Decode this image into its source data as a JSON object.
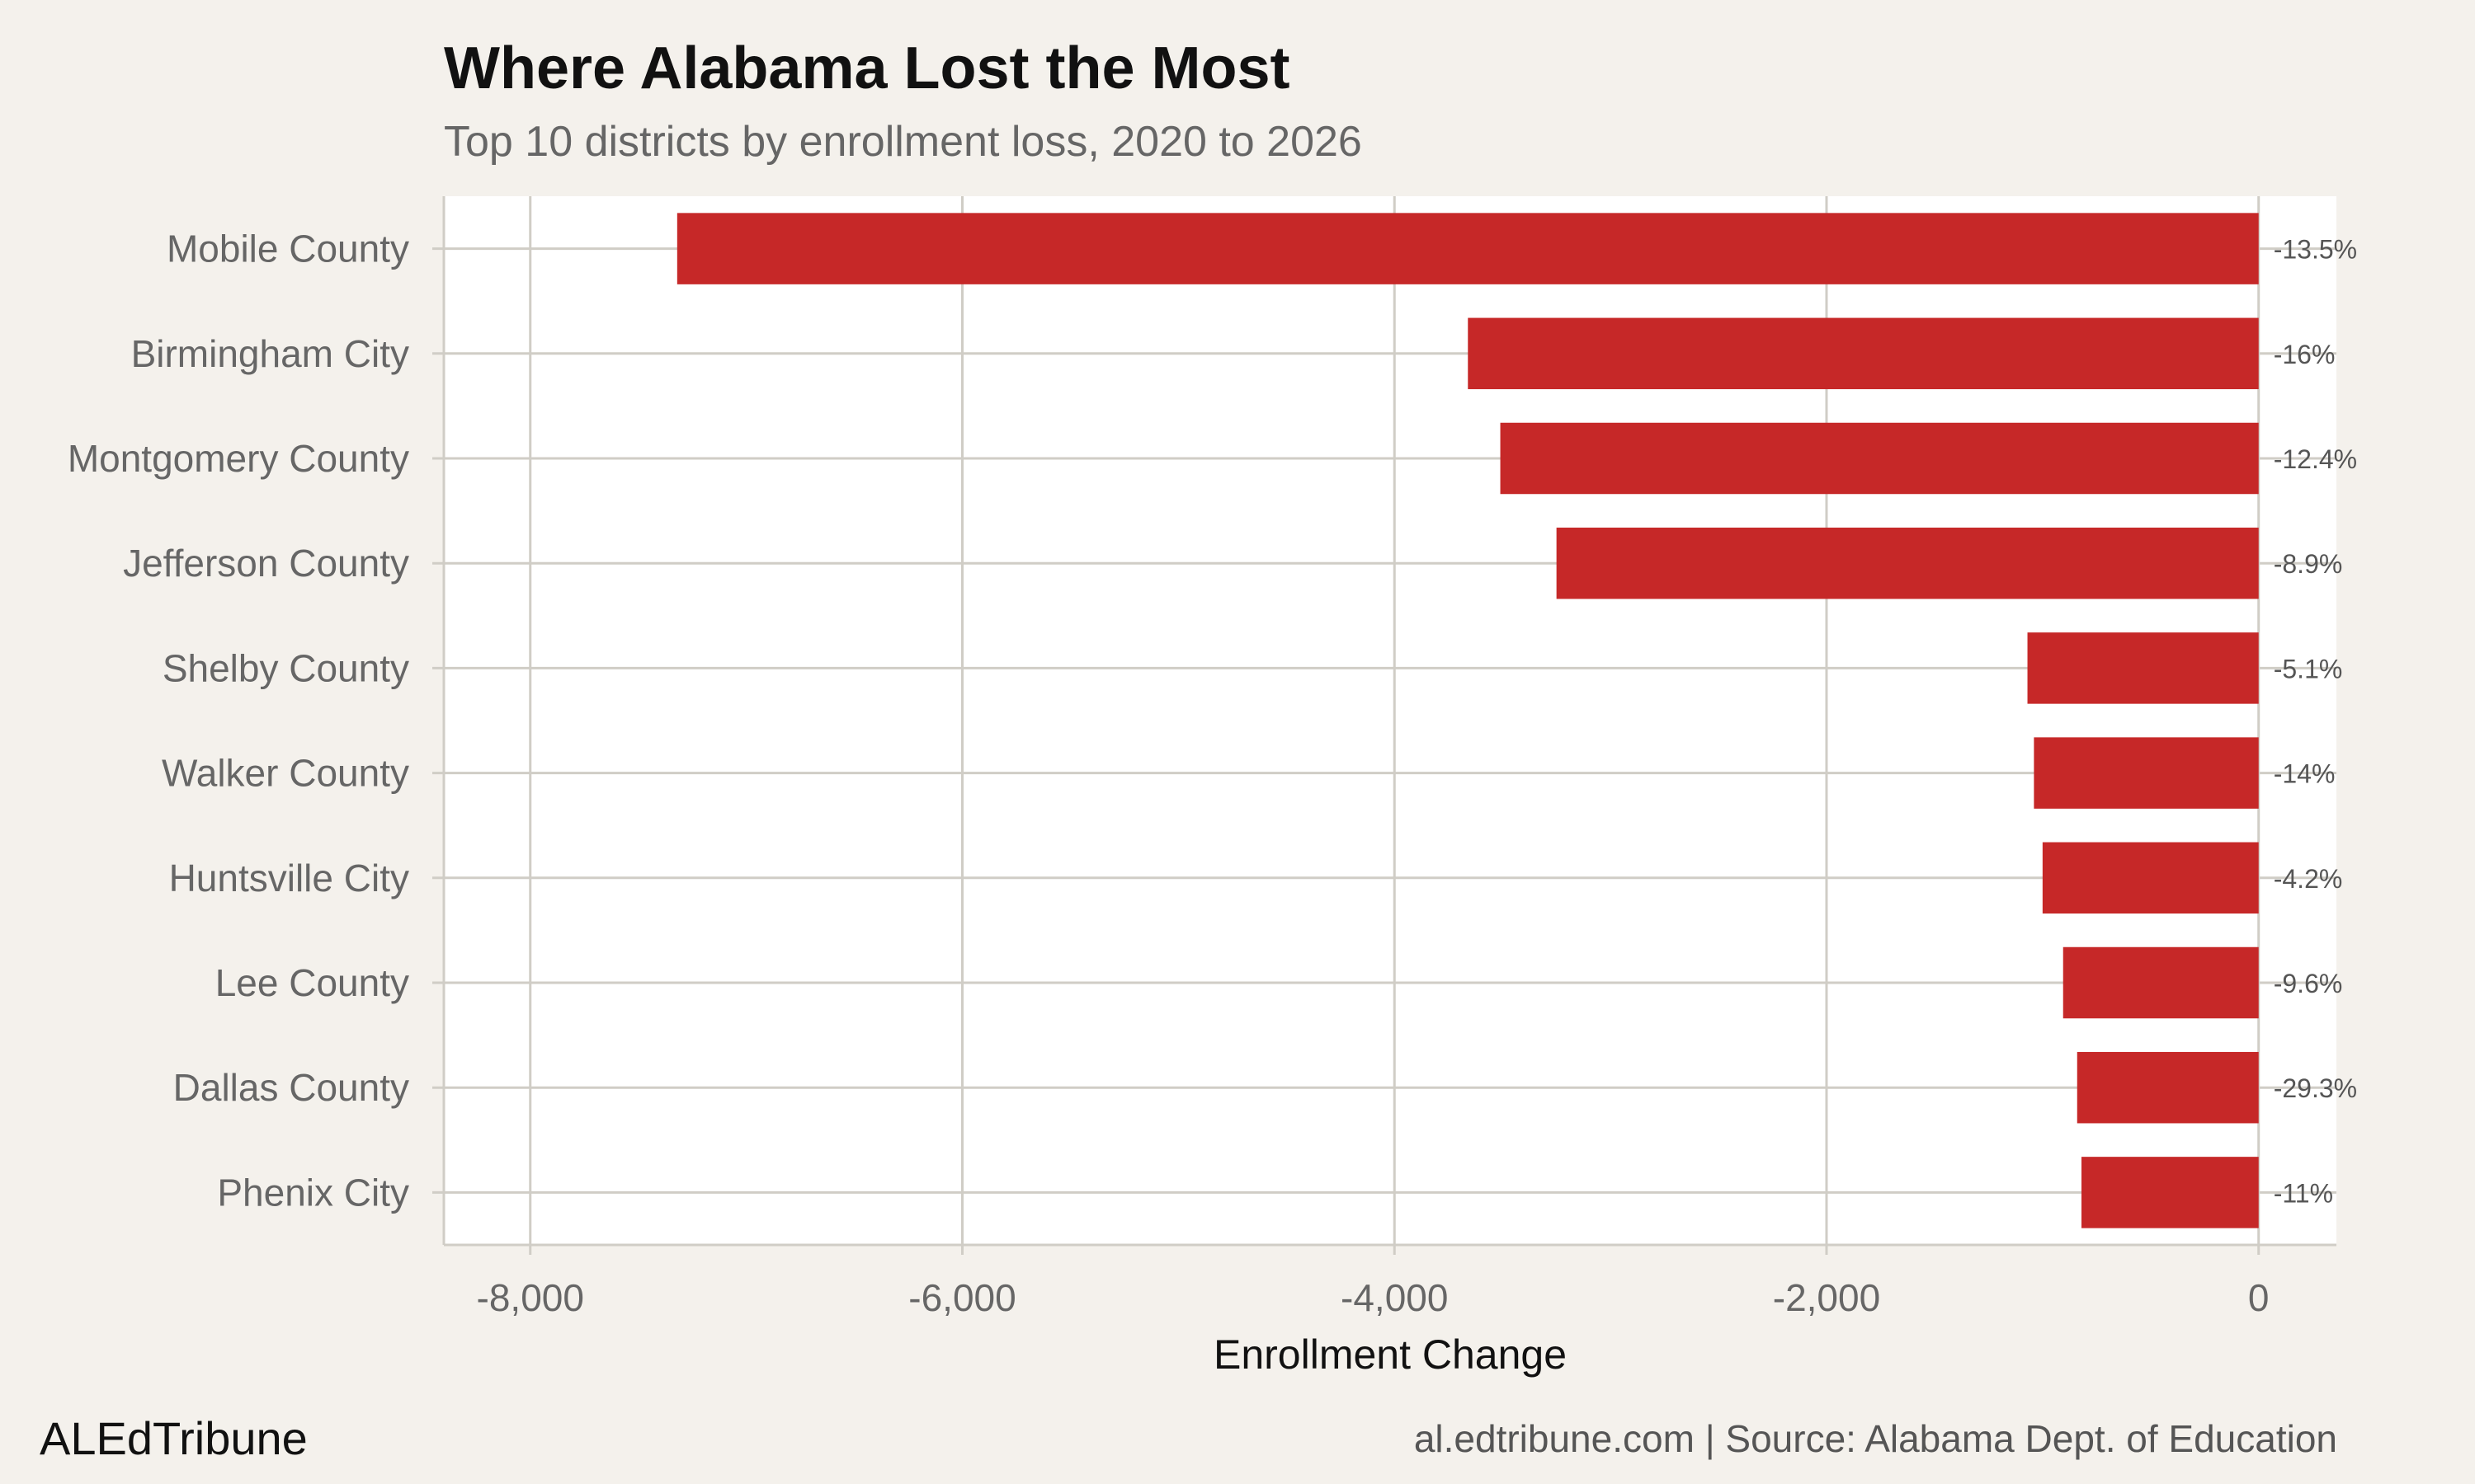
{
  "header": {
    "title": "Where Alabama Lost the Most",
    "subtitle": "Top 10 districts by enrollment loss, 2020 to 2026"
  },
  "footer": {
    "brand": "ALEdTribune",
    "caption": "al.edtribune.com | Source: Alabama Dept. of Education"
  },
  "colors": {
    "bar": "#c62828",
    "background": "#f4f1ec",
    "panel": "#ffffff",
    "grid": "#d0cdc6",
    "label": "#666666",
    "pct_label": "#555555"
  },
  "chart_data": {
    "type": "bar",
    "orientation": "horizontal",
    "title": "Where Alabama Lost the Most",
    "subtitle": "Top 10 districts by enrollment loss, 2020 to 2026",
    "xlabel": "Enrollment Change",
    "ylabel": "",
    "xlim": [
      -8400,
      360
    ],
    "x_ticks": [
      -8000,
      -6000,
      -4000,
      -2000,
      0
    ],
    "x_tick_labels": [
      "-8,000",
      "-6,000",
      "-4,000",
      "-2,000",
      "0"
    ],
    "grid": true,
    "categories": [
      "Mobile County",
      "Birmingham City",
      "Montgomery County",
      "Jefferson County",
      "Shelby County",
      "Walker County",
      "Huntsville City",
      "Lee County",
      "Dallas County",
      "Phenix City"
    ],
    "values": [
      -7320,
      -3660,
      -3510,
      -3250,
      -1070,
      -1040,
      -1000,
      -905,
      -840,
      -820
    ],
    "pct_labels": [
      "-13.5%",
      "-16%",
      "-12.4%",
      "-8.9%",
      "-5.1%",
      "-14%",
      "-4.2%",
      "-9.6%",
      "-29.3%",
      "-11%"
    ]
  }
}
